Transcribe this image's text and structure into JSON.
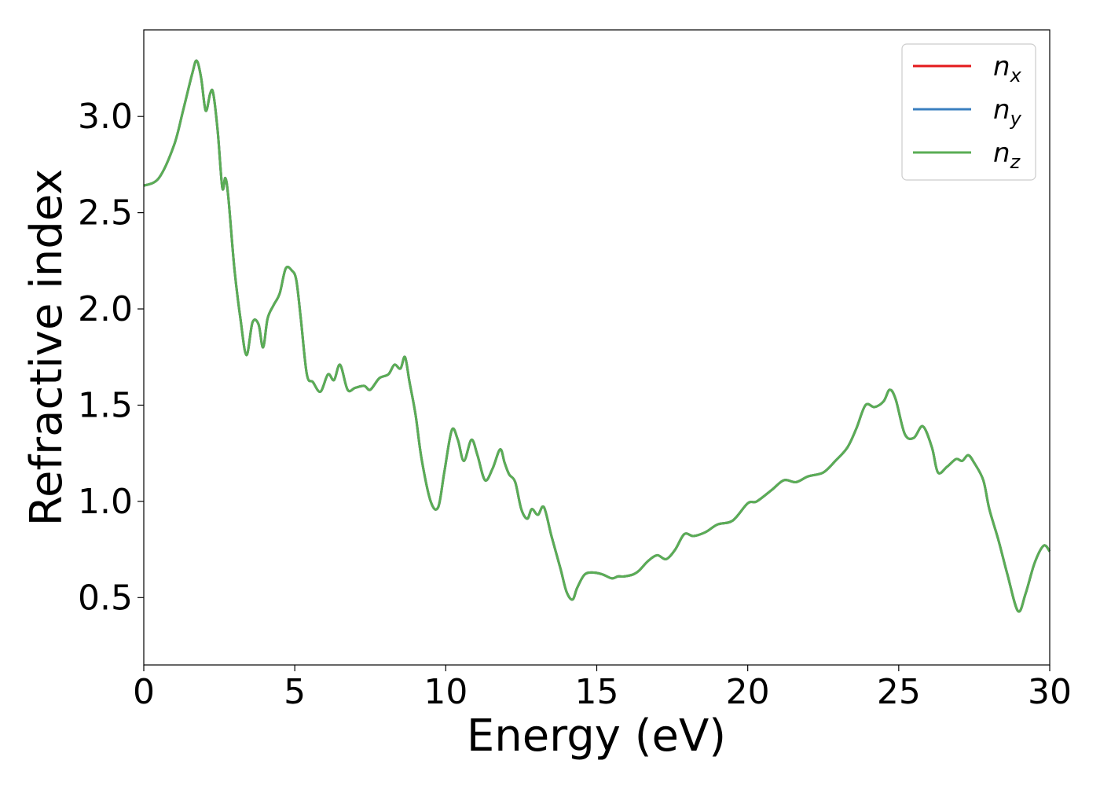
{
  "chart_data": {
    "type": "line",
    "title": "",
    "xlabel": "Energy (eV)",
    "ylabel": "Refractive index",
    "xlim": [
      0,
      30
    ],
    "ylim": [
      0.15,
      3.45
    ],
    "xticks": [
      0,
      5,
      10,
      15,
      20,
      25,
      30
    ],
    "xtick_labels": [
      "0",
      "5",
      "10",
      "15",
      "20",
      "25",
      "30"
    ],
    "yticks": [
      0.5,
      1.0,
      1.5,
      2.0,
      2.5,
      3.0
    ],
    "ytick_labels": [
      "0.5",
      "1.0",
      "1.5",
      "2.0",
      "2.5",
      "3.0"
    ],
    "grid": false,
    "legend_position": "top-right",
    "series_colors": [
      "#e31a1c",
      "#3a7fbf",
      "#5aad55"
    ],
    "series": [
      {
        "name": "n",
        "subscript": "x",
        "color": "#e31a1c"
      },
      {
        "name": "n",
        "subscript": "y",
        "color": "#3a7fbf"
      },
      {
        "name": "n",
        "subscript": "z",
        "color": "#5aad55"
      }
    ],
    "x": [
      0,
      0.5,
      1.0,
      1.3,
      1.6,
      1.75,
      1.9,
      2.05,
      2.2,
      2.3,
      2.45,
      2.6,
      2.7,
      2.8,
      3.0,
      3.2,
      3.4,
      3.6,
      3.8,
      3.95,
      4.1,
      4.3,
      4.5,
      4.7,
      4.9,
      5.05,
      5.2,
      5.4,
      5.6,
      5.85,
      6.1,
      6.3,
      6.5,
      6.75,
      7.0,
      7.3,
      7.5,
      7.8,
      8.1,
      8.3,
      8.5,
      8.65,
      8.8,
      9.0,
      9.2,
      9.5,
      9.75,
      9.95,
      10.2,
      10.4,
      10.6,
      10.85,
      11.05,
      11.3,
      11.55,
      11.8,
      11.95,
      12.1,
      12.3,
      12.5,
      12.7,
      12.85,
      13.05,
      13.25,
      13.5,
      13.8,
      14.0,
      14.2,
      14.35,
      14.6,
      14.9,
      15.2,
      15.5,
      15.7,
      15.9,
      16.2,
      16.4,
      16.7,
      17.0,
      17.3,
      17.6,
      17.9,
      18.2,
      18.6,
      19.0,
      19.5,
      20.0,
      20.3,
      20.8,
      21.2,
      21.6,
      22.0,
      22.5,
      22.9,
      23.3,
      23.6,
      23.9,
      24.2,
      24.5,
      24.7,
      24.9,
      25.2,
      25.5,
      25.8,
      26.1,
      26.3,
      26.6,
      26.9,
      27.1,
      27.3,
      27.5,
      27.8,
      28.0,
      28.3,
      28.6,
      28.95,
      29.2,
      29.5,
      29.8,
      30.0
    ],
    "values": [
      2.64,
      2.68,
      2.85,
      3.03,
      3.22,
      3.29,
      3.2,
      3.03,
      3.12,
      3.12,
      2.92,
      2.63,
      2.68,
      2.58,
      2.21,
      1.95,
      1.76,
      1.93,
      1.92,
      1.8,
      1.95,
      2.02,
      2.08,
      2.21,
      2.2,
      2.15,
      1.95,
      1.66,
      1.62,
      1.57,
      1.66,
      1.63,
      1.71,
      1.58,
      1.59,
      1.6,
      1.58,
      1.64,
      1.66,
      1.71,
      1.69,
      1.75,
      1.62,
      1.45,
      1.22,
      1.0,
      0.97,
      1.15,
      1.37,
      1.32,
      1.21,
      1.32,
      1.24,
      1.11,
      1.17,
      1.27,
      1.2,
      1.14,
      1.1,
      0.96,
      0.91,
      0.96,
      0.93,
      0.97,
      0.82,
      0.65,
      0.53,
      0.49,
      0.55,
      0.62,
      0.63,
      0.62,
      0.6,
      0.61,
      0.61,
      0.62,
      0.64,
      0.69,
      0.72,
      0.7,
      0.75,
      0.83,
      0.82,
      0.84,
      0.88,
      0.9,
      0.99,
      1.0,
      1.06,
      1.11,
      1.1,
      1.13,
      1.15,
      1.21,
      1.28,
      1.38,
      1.5,
      1.49,
      1.52,
      1.58,
      1.53,
      1.35,
      1.33,
      1.39,
      1.28,
      1.15,
      1.18,
      1.22,
      1.21,
      1.24,
      1.2,
      1.11,
      0.96,
      0.8,
      0.62,
      0.43,
      0.52,
      0.68,
      0.77,
      0.74
    ]
  }
}
